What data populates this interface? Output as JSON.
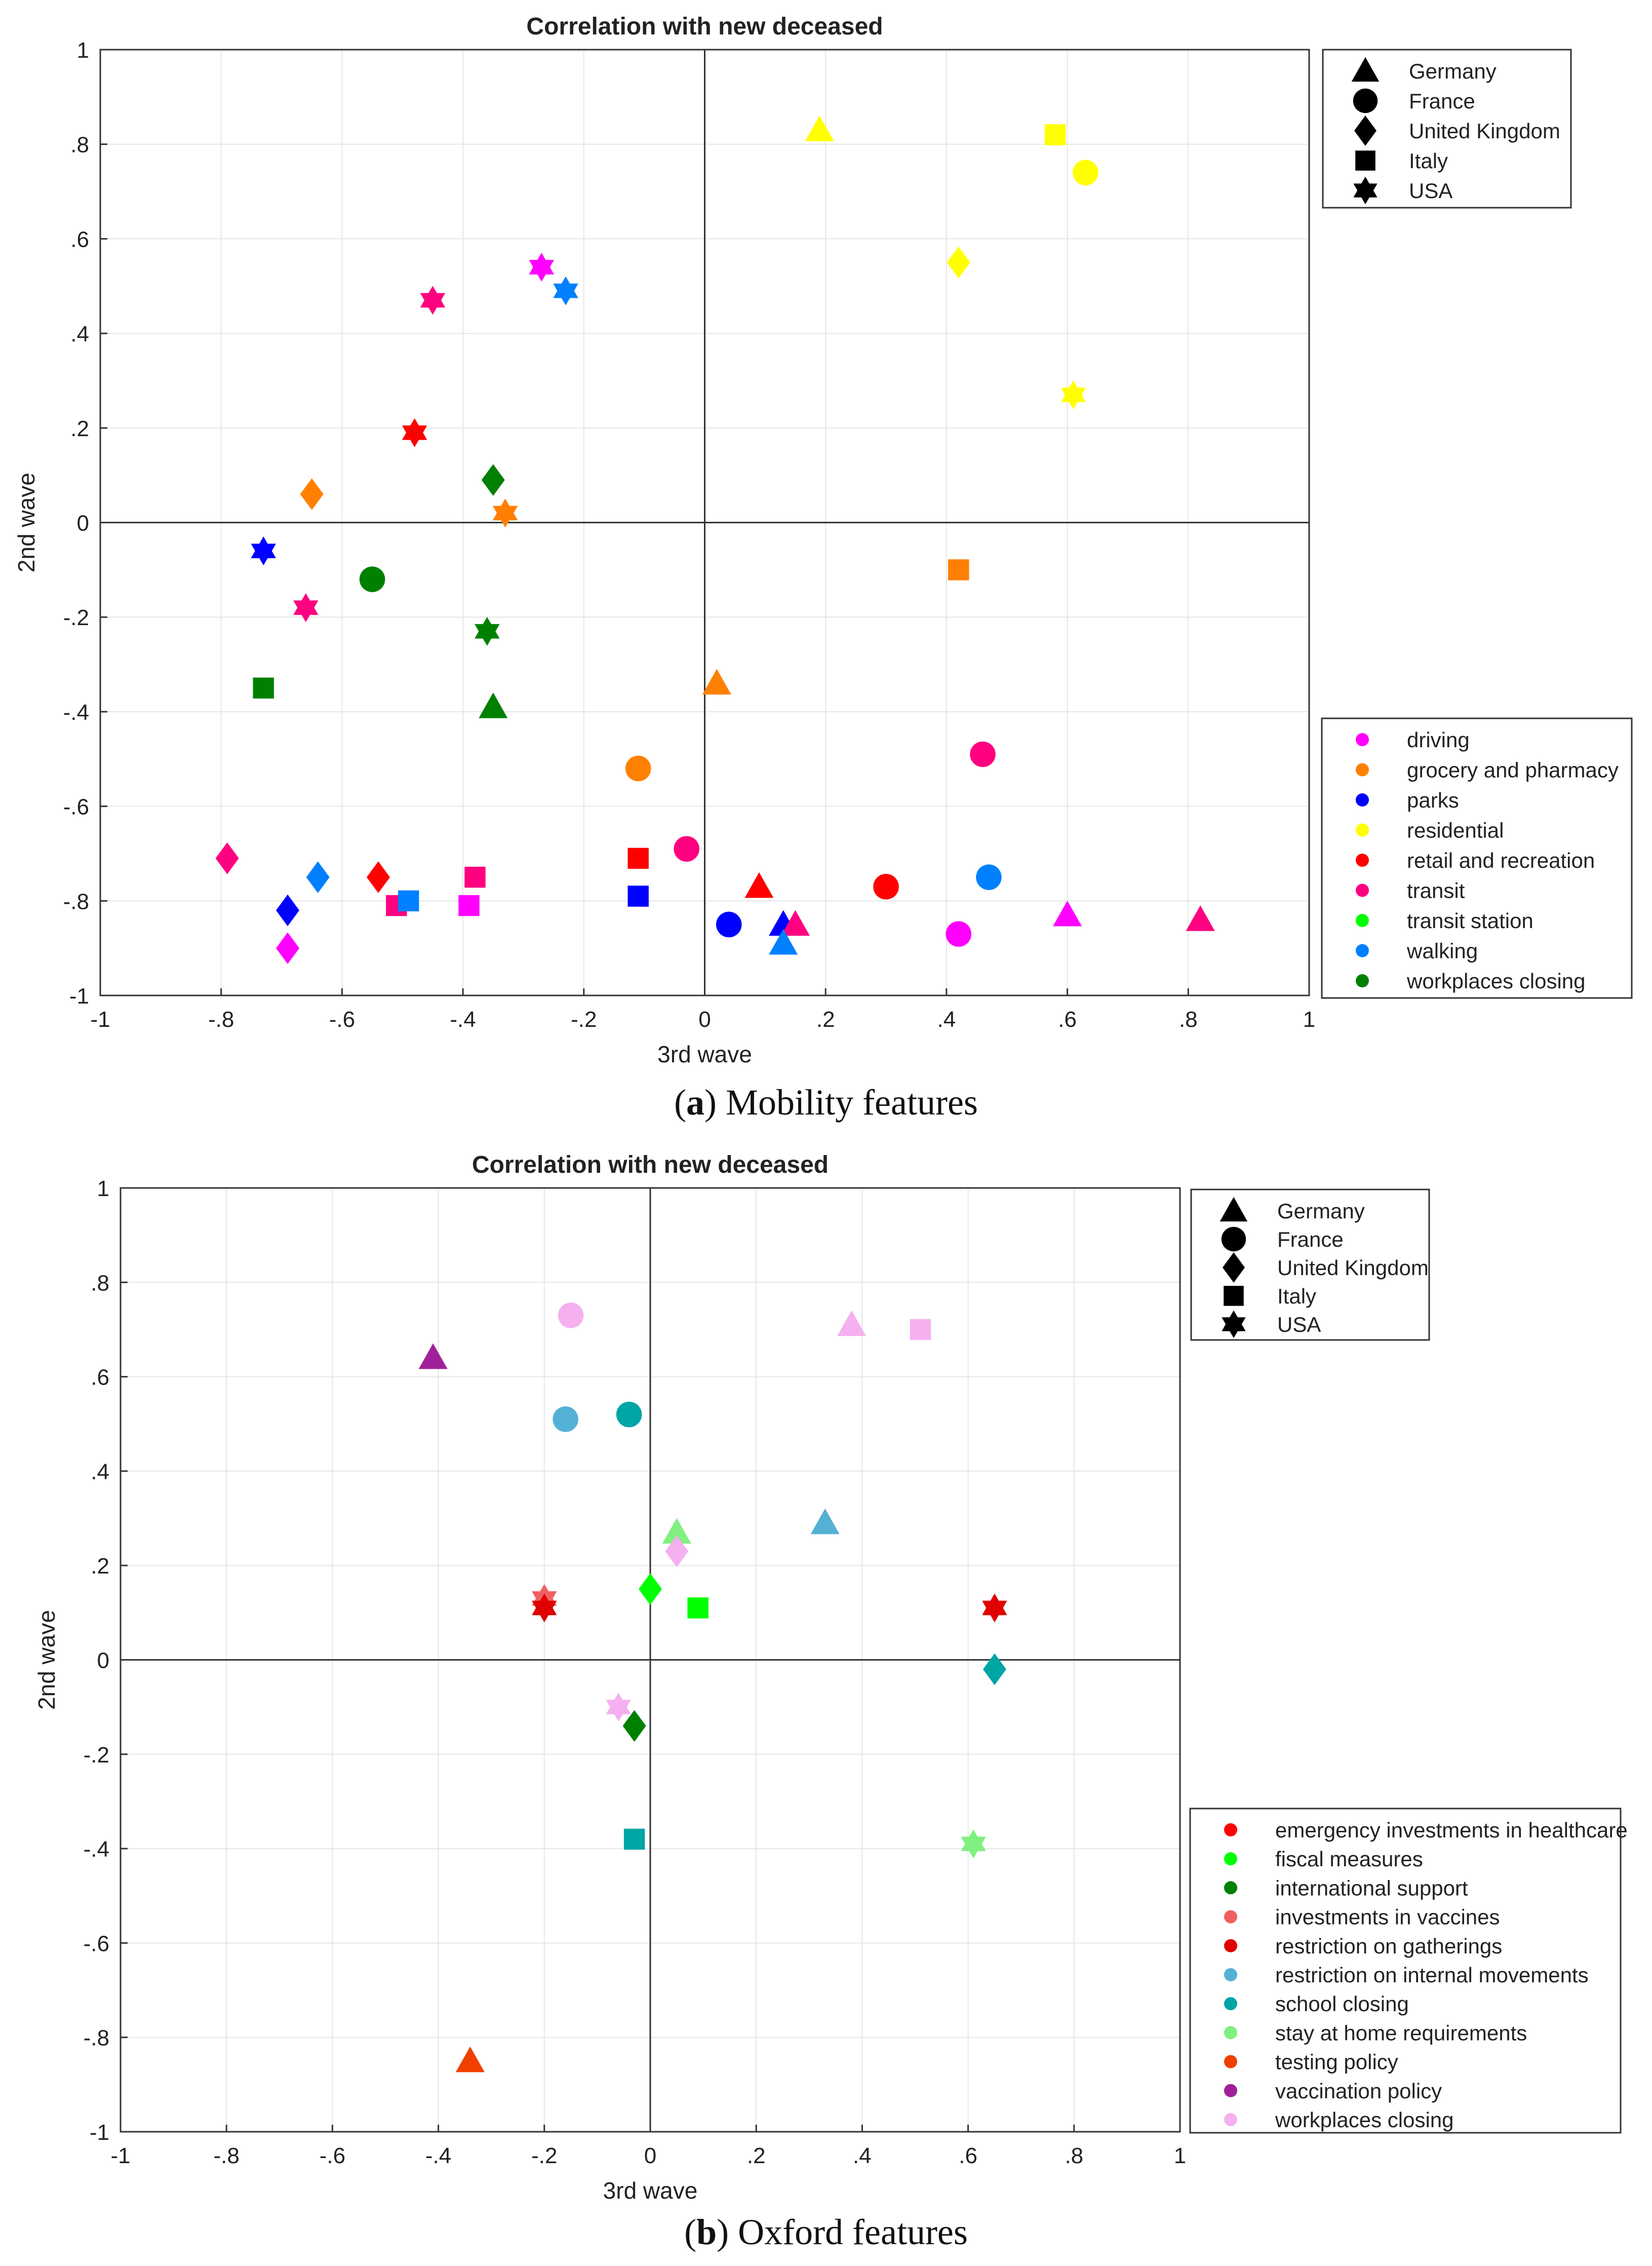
{
  "figure": {
    "caption_a": {
      "letter": "a",
      "text": " Mobility features"
    },
    "caption_b": {
      "letter": "b",
      "text": " Oxford features"
    }
  },
  "chart_data": [
    {
      "type": "scatter",
      "title": "Correlation with new deceased",
      "xlabel": "3rd wave",
      "ylabel": "2nd wave",
      "xlim": [
        -1,
        1
      ],
      "ylim": [
        -1,
        1
      ],
      "xticks": [
        -1,
        -0.8,
        -0.6,
        -0.4,
        -0.2,
        0,
        0.2,
        0.4,
        0.6,
        0.8,
        1
      ],
      "yticks": [
        -1,
        -0.8,
        -0.6,
        -0.4,
        -0.2,
        0,
        0.2,
        0.4,
        0.6,
        0.8,
        1
      ],
      "grid": true,
      "shape_legend": [
        {
          "label": "Germany",
          "marker": "triangle"
        },
        {
          "label": "France",
          "marker": "circle"
        },
        {
          "label": "United Kingdom",
          "marker": "diamond"
        },
        {
          "label": "Italy",
          "marker": "square"
        },
        {
          "label": "USA",
          "marker": "hexagram"
        }
      ],
      "color_legend": [
        {
          "label": "driving",
          "color": "#FF00FF"
        },
        {
          "label": "grocery and pharmacy",
          "color": "#FF8000"
        },
        {
          "label": "parks",
          "color": "#0000FF"
        },
        {
          "label": "residential",
          "color": "#FFFF00"
        },
        {
          "label": "retail and recreation",
          "color": "#FF0000"
        },
        {
          "label": "transit",
          "color": "#FF0080"
        },
        {
          "label": "transit station",
          "color": "#00FF00"
        },
        {
          "label": "walking",
          "color": "#0080FF"
        },
        {
          "label": "workplaces closing",
          "color": "#008000"
        }
      ],
      "points": [
        {
          "x": 0.19,
          "y": 0.83,
          "marker": "triangle",
          "color": "#FFFF00"
        },
        {
          "x": 0.58,
          "y": 0.82,
          "marker": "square",
          "color": "#FFFF00"
        },
        {
          "x": 0.63,
          "y": 0.74,
          "marker": "circle",
          "color": "#FFFF00"
        },
        {
          "x": 0.42,
          "y": 0.55,
          "marker": "diamond",
          "color": "#FFFF00"
        },
        {
          "x": 0.61,
          "y": 0.27,
          "marker": "hexagram",
          "color": "#FFFF00"
        },
        {
          "x": -0.27,
          "y": 0.54,
          "marker": "hexagram",
          "color": "#FF00FF"
        },
        {
          "x": -0.23,
          "y": 0.49,
          "marker": "hexagram",
          "color": "#0080FF"
        },
        {
          "x": -0.45,
          "y": 0.47,
          "marker": "hexagram",
          "color": "#FF0080"
        },
        {
          "x": -0.48,
          "y": 0.19,
          "marker": "hexagram",
          "color": "#FF0000"
        },
        {
          "x": -0.65,
          "y": 0.06,
          "marker": "diamond",
          "color": "#FF8000"
        },
        {
          "x": -0.35,
          "y": 0.09,
          "marker": "diamond",
          "color": "#008000"
        },
        {
          "x": -0.33,
          "y": 0.02,
          "marker": "hexagram",
          "color": "#FF8000"
        },
        {
          "x": -0.73,
          "y": -0.06,
          "marker": "hexagram",
          "color": "#0000FF"
        },
        {
          "x": -0.55,
          "y": -0.12,
          "marker": "circle",
          "color": "#008000"
        },
        {
          "x": -0.66,
          "y": -0.18,
          "marker": "hexagram",
          "color": "#FF0080"
        },
        {
          "x": -0.36,
          "y": -0.23,
          "marker": "hexagram",
          "color": "#008000"
        },
        {
          "x": 0.42,
          "y": -0.1,
          "marker": "square",
          "color": "#FF8000"
        },
        {
          "x": -0.73,
          "y": -0.35,
          "marker": "square",
          "color": "#008000"
        },
        {
          "x": -0.35,
          "y": -0.39,
          "marker": "triangle",
          "color": "#008000"
        },
        {
          "x": 0.02,
          "y": -0.34,
          "marker": "triangle",
          "color": "#FF8000"
        },
        {
          "x": -0.11,
          "y": -0.52,
          "marker": "circle",
          "color": "#FF8000"
        },
        {
          "x": 0.46,
          "y": -0.49,
          "marker": "circle",
          "color": "#FF0080"
        },
        {
          "x": -0.79,
          "y": -0.71,
          "marker": "diamond",
          "color": "#FF0080"
        },
        {
          "x": -0.64,
          "y": -0.75,
          "marker": "diamond",
          "color": "#0080FF"
        },
        {
          "x": -0.54,
          "y": -0.75,
          "marker": "diamond",
          "color": "#FF0000"
        },
        {
          "x": -0.69,
          "y": -0.82,
          "marker": "diamond",
          "color": "#0000FF"
        },
        {
          "x": -0.69,
          "y": -0.9,
          "marker": "diamond",
          "color": "#FF00FF"
        },
        {
          "x": -0.51,
          "y": -0.81,
          "marker": "square",
          "color": "#FF0080"
        },
        {
          "x": -0.49,
          "y": -0.8,
          "marker": "square",
          "color": "#0080FF"
        },
        {
          "x": -0.38,
          "y": -0.75,
          "marker": "square",
          "color": "#FF0080"
        },
        {
          "x": -0.39,
          "y": -0.81,
          "marker": "square",
          "color": "#FF00FF"
        },
        {
          "x": -0.11,
          "y": -0.71,
          "marker": "square",
          "color": "#FF0000"
        },
        {
          "x": -0.11,
          "y": -0.79,
          "marker": "square",
          "color": "#0000FF"
        },
        {
          "x": -0.03,
          "y": -0.69,
          "marker": "circle",
          "color": "#FF0080"
        },
        {
          "x": 0.04,
          "y": -0.85,
          "marker": "circle",
          "color": "#0000FF"
        },
        {
          "x": 0.09,
          "y": -0.77,
          "marker": "triangle",
          "color": "#FF0000"
        },
        {
          "x": 0.13,
          "y": -0.85,
          "marker": "triangle",
          "color": "#0000FF"
        },
        {
          "x": 0.15,
          "y": -0.85,
          "marker": "triangle",
          "color": "#FF0080"
        },
        {
          "x": 0.13,
          "y": -0.89,
          "marker": "triangle",
          "color": "#0080FF"
        },
        {
          "x": 0.3,
          "y": -0.77,
          "marker": "circle",
          "color": "#FF0000"
        },
        {
          "x": 0.42,
          "y": -0.87,
          "marker": "circle",
          "color": "#FF00FF"
        },
        {
          "x": 0.47,
          "y": -0.75,
          "marker": "circle",
          "color": "#0080FF"
        },
        {
          "x": 0.6,
          "y": -0.83,
          "marker": "triangle",
          "color": "#FF00FF"
        },
        {
          "x": 0.82,
          "y": -0.84,
          "marker": "triangle",
          "color": "#FF0080"
        }
      ]
    },
    {
      "type": "scatter",
      "title": "Correlation with new deceased",
      "xlabel": "3rd wave",
      "ylabel": "2nd wave",
      "xlim": [
        -1,
        1
      ],
      "ylim": [
        -1,
        1
      ],
      "xticks": [
        -1,
        -0.8,
        -0.6,
        -0.4,
        -0.2,
        0,
        0.2,
        0.4,
        0.6,
        0.8,
        1
      ],
      "yticks": [
        -1,
        -0.8,
        -0.6,
        -0.4,
        -0.2,
        0,
        0.2,
        0.4,
        0.6,
        0.8,
        1
      ],
      "grid": true,
      "shape_legend": [
        {
          "label": "Germany",
          "marker": "triangle"
        },
        {
          "label": "France",
          "marker": "circle"
        },
        {
          "label": "United Kingdom",
          "marker": "diamond"
        },
        {
          "label": "Italy",
          "marker": "square"
        },
        {
          "label": "USA",
          "marker": "hexagram"
        }
      ],
      "color_legend": [
        {
          "label": "emergency investments in healthcare",
          "color": "#FF0000"
        },
        {
          "label": "fiscal measures",
          "color": "#00FF00"
        },
        {
          "label": "international support",
          "color": "#008000"
        },
        {
          "label": "investments in vaccines",
          "color": "#F06060"
        },
        {
          "label": "restriction on gatherings",
          "color": "#E00000"
        },
        {
          "label": "restriction on internal movements",
          "color": "#55B0D5"
        },
        {
          "label": "school closing",
          "color": "#00A5A5"
        },
        {
          "label": "stay at home requirements",
          "color": "#80F080"
        },
        {
          "label": "testing policy",
          "color": "#F04000"
        },
        {
          "label": "vaccination policy",
          "color": "#A0209A"
        },
        {
          "label": "workplaces closing",
          "color": "#F5B0F0"
        }
      ],
      "points": [
        {
          "x": -0.15,
          "y": 0.73,
          "marker": "circle",
          "color": "#F5B0F0"
        },
        {
          "x": 0.38,
          "y": 0.71,
          "marker": "triangle",
          "color": "#F5B0F0"
        },
        {
          "x": 0.51,
          "y": 0.7,
          "marker": "square",
          "color": "#F5B0F0"
        },
        {
          "x": -0.41,
          "y": 0.64,
          "marker": "triangle",
          "color": "#A0209A"
        },
        {
          "x": -0.16,
          "y": 0.51,
          "marker": "circle",
          "color": "#55B0D5"
        },
        {
          "x": -0.04,
          "y": 0.52,
          "marker": "circle",
          "color": "#00A5A5"
        },
        {
          "x": 0.33,
          "y": 0.29,
          "marker": "triangle",
          "color": "#55B0D5"
        },
        {
          "x": 0.05,
          "y": 0.27,
          "marker": "triangle",
          "color": "#80F080"
        },
        {
          "x": 0.05,
          "y": 0.23,
          "marker": "diamond",
          "color": "#F5B0F0"
        },
        {
          "x": -0.2,
          "y": 0.13,
          "marker": "hexagram",
          "color": "#F06060"
        },
        {
          "x": -0.2,
          "y": 0.11,
          "marker": "hexagram",
          "color": "#E00000"
        },
        {
          "x": 0.0,
          "y": 0.15,
          "marker": "diamond",
          "color": "#00FF00"
        },
        {
          "x": 0.09,
          "y": 0.11,
          "marker": "square",
          "color": "#00FF00"
        },
        {
          "x": 0.65,
          "y": 0.11,
          "marker": "hexagram",
          "color": "#E00000"
        },
        {
          "x": 0.65,
          "y": -0.02,
          "marker": "diamond",
          "color": "#00A5A5"
        },
        {
          "x": -0.06,
          "y": -0.1,
          "marker": "hexagram",
          "color": "#F5B0F0"
        },
        {
          "x": -0.03,
          "y": -0.14,
          "marker": "diamond",
          "color": "#008000"
        },
        {
          "x": -0.03,
          "y": -0.38,
          "marker": "square",
          "color": "#00A5A5"
        },
        {
          "x": 0.61,
          "y": -0.39,
          "marker": "hexagram",
          "color": "#80F080"
        },
        {
          "x": -0.34,
          "y": -0.85,
          "marker": "triangle",
          "color": "#F04000"
        }
      ]
    }
  ]
}
